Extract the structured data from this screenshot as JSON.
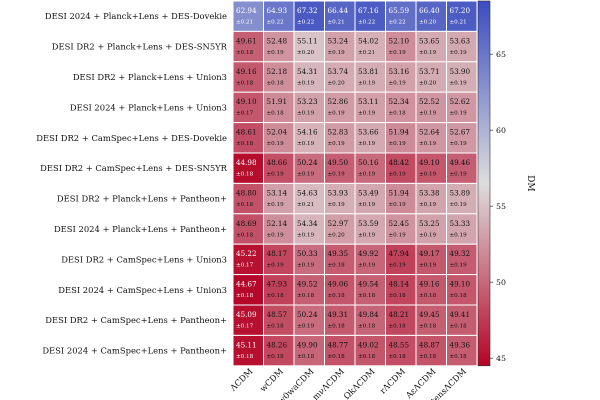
{
  "chart_data": {
    "type": "heatmap",
    "rows": [
      "DESI 2024 + Planck+Lens + DES-Dovekie",
      "DESI DR2 + Planck+Lens + DES-SN5YR",
      "DESI DR2 + Planck+Lens + Union3",
      "DESI 2024 + Planck+Lens + Union3",
      "DESI DR2 + CamSpec+Lens + DES-Dovekie",
      "DESI DR2 + CamSpec+Lens + DES-SN5YR",
      "DESI DR2 + Planck+Lens + Pantheon+",
      "DESI 2024 + Planck+Lens + Pantheon+",
      "DESI DR2 + CamSpec+Lens + Union3",
      "DESI 2024 + CamSpec+Lens + Union3",
      "DESI DR2 + CamSpec+Lens + Pantheon+",
      "DESI 2024 + CamSpec+Lens + Pantheon+"
    ],
    "columns": [
      "ΛCDM",
      "wCDM",
      "w0waCDM",
      "mνΛCDM",
      "ΩkΛCDM",
      "rΛCDM",
      "AεΛCDM",
      "ntensΛCDM"
    ],
    "values": [
      [
        62.94,
        64.93,
        67.32,
        66.44,
        67.16,
        65.59,
        66.4,
        67.2
      ],
      [
        49.61,
        52.48,
        55.11,
        53.24,
        54.02,
        52.1,
        53.65,
        53.63
      ],
      [
        49.16,
        52.18,
        54.31,
        53.74,
        53.81,
        53.16,
        53.71,
        53.9
      ],
      [
        49.1,
        51.91,
        53.23,
        52.86,
        53.11,
        52.34,
        52.52,
        52.62
      ],
      [
        48.61,
        52.04,
        54.16,
        52.83,
        53.66,
        51.94,
        52.64,
        52.67
      ],
      [
        44.98,
        48.66,
        50.24,
        49.5,
        50.16,
        48.42,
        49.1,
        49.46
      ],
      [
        48.8,
        53.14,
        54.63,
        53.93,
        53.49,
        51.94,
        53.38,
        53.89
      ],
      [
        48.69,
        52.14,
        54.34,
        52.97,
        53.59,
        52.45,
        53.25,
        53.33
      ],
      [
        45.22,
        48.17,
        50.33,
        49.35,
        49.92,
        47.94,
        49.17,
        49.32
      ],
      [
        44.67,
        47.93,
        49.52,
        49.06,
        49.54,
        48.14,
        49.16,
        49.1
      ],
      [
        45.09,
        48.57,
        50.24,
        49.31,
        49.84,
        48.21,
        49.45,
        49.41
      ],
      [
        45.11,
        48.26,
        49.9,
        48.77,
        49.02,
        48.55,
        48.87,
        49.36
      ]
    ],
    "errors": [
      [
        "±0.21",
        "±0.22",
        "±0.22",
        "±0.21",
        "±0.22",
        "±0.22",
        "±0.20",
        "±0.21"
      ],
      [
        "±0.18",
        "±0.19",
        "±0.20",
        "±0.19",
        "±0.21",
        "±0.19",
        "±0.19",
        "±0.19"
      ],
      [
        "±0.18",
        "±0.18",
        "±0.19",
        "±0.20",
        "±0.19",
        "±0.19",
        "±0.20",
        "±0.19"
      ],
      [
        "±0.17",
        "±0.18",
        "±0.19",
        "±0.19",
        "±0.19",
        "±0.18",
        "±0.19",
        "±0.19"
      ],
      [
        "±0.18",
        "±0.19",
        "±0.19",
        "±0.19",
        "±0.19",
        "±0.19",
        "±0.19",
        "±0.19"
      ],
      [
        "±0.18",
        "±0.19",
        "±0.19",
        "±0.19",
        "±0.19",
        "±0.19",
        "±0.19",
        "±0.19"
      ],
      [
        "±0.18",
        "±0.19",
        "±0.21",
        "±0.19",
        "±0.19",
        "±0.19",
        "±0.19",
        "±0.19"
      ],
      [
        "±0.18",
        "±0.19",
        "±0.19",
        "±0.20",
        "±0.19",
        "±0.19",
        "±0.19",
        "±0.19"
      ],
      [
        "±0.17",
        "±0.19",
        "±0.19",
        "±0.18",
        "±0.19",
        "±0.19",
        "±0.19",
        "±0.19"
      ],
      [
        "±0.18",
        "±0.18",
        "±0.18",
        "±0.18",
        "±0.18",
        "±0.18",
        "±0.18",
        "±0.18"
      ],
      [
        "±0.17",
        "±0.18",
        "±0.19",
        "±0.18",
        "±0.18",
        "±0.18",
        "±0.18",
        "±0.18"
      ],
      [
        "±0.18",
        "±0.18",
        "±0.18",
        "±0.18",
        "±0.18",
        "±0.18",
        "±0.18",
        "±0.18"
      ]
    ],
    "colorbar": {
      "label": "DM",
      "ticks": [
        45,
        50,
        55,
        60,
        65
      ],
      "range": [
        44.5,
        68.5
      ],
      "colormap": "coolwarm_r",
      "low_color": "#b40426",
      "mid_color": "#dddddd",
      "high_color": "#3b4cc0"
    },
    "grid": false,
    "legend": "colorbar-right"
  }
}
